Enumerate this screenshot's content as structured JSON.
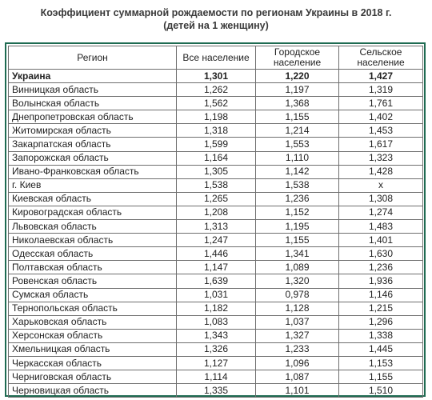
{
  "title": {
    "line1": "Коэффициент суммарной рождаемости по регионам Украины в 2018 г.",
    "line2": "(детей на 1 женщину)"
  },
  "table": {
    "headers": {
      "region": "Регион",
      "total": "Все население",
      "urban_line1": "Городское",
      "urban_line2": "население",
      "rural_line1": "Сельское",
      "rural_line2": "население"
    },
    "rows": [
      {
        "region": "Украина",
        "total": "1,301",
        "urban": "1,220",
        "rural": "1,427",
        "bold": true
      },
      {
        "region": "Винницкая область",
        "total": "1,262",
        "urban": "1,197",
        "rural": "1,319"
      },
      {
        "region": "Волынская область",
        "total": "1,562",
        "urban": "1,368",
        "rural": "1,761"
      },
      {
        "region": "Днепропетровская область",
        "total": "1,198",
        "urban": "1,155",
        "rural": "1,402"
      },
      {
        "region": "Житомирская область",
        "total": "1,318",
        "urban": "1,214",
        "rural": "1,453"
      },
      {
        "region": "Закарпатская область",
        "total": "1,599",
        "urban": "1,553",
        "rural": "1,617"
      },
      {
        "region": "Запорожская область",
        "total": "1,164",
        "urban": "1,110",
        "rural": "1,323"
      },
      {
        "region": "Ивано-Франковская область",
        "total": "1,305",
        "urban": "1,142",
        "rural": "1,428"
      },
      {
        "region": "г. Киев",
        "total": "1,538",
        "urban": "1,538",
        "rural": "x"
      },
      {
        "region": "Киевская область",
        "total": "1,265",
        "urban": "1,236",
        "rural": "1,308"
      },
      {
        "region": "Кировоградская область",
        "total": "1,208",
        "urban": "1,152",
        "rural": "1,274"
      },
      {
        "region": "Львовская область",
        "total": "1,313",
        "urban": "1,195",
        "rural": "1,483"
      },
      {
        "region": "Николаевская область",
        "total": "1,247",
        "urban": "1,155",
        "rural": "1,401"
      },
      {
        "region": "Одесская область",
        "total": "1,446",
        "urban": "1,341",
        "rural": "1,630"
      },
      {
        "region": "Полтавская область",
        "total": "1,147",
        "urban": "1,089",
        "rural": "1,236"
      },
      {
        "region": "Ровенская область",
        "total": "1,639",
        "urban": "1,320",
        "rural": "1,936"
      },
      {
        "region": "Сумская область",
        "total": "1,031",
        "urban": "0,978",
        "rural": "1,146"
      },
      {
        "region": "Тернопольская область",
        "total": "1,182",
        "urban": "1,128",
        "rural": "1,215"
      },
      {
        "region": "Харьковская область",
        "total": "1,083",
        "urban": "1,037",
        "rural": "1,296"
      },
      {
        "region": "Херсонская область",
        "total": "1,343",
        "urban": "1,327",
        "rural": "1,338"
      },
      {
        "region": "Хмельницкая область",
        "total": "1,326",
        "urban": "1,233",
        "rural": "1,445"
      },
      {
        "region": "Черкасская область",
        "total": "1,127",
        "urban": "1,096",
        "rural": "1,153"
      },
      {
        "region": "Черниговская область",
        "total": "1,114",
        "urban": "1,087",
        "rural": "1,155"
      },
      {
        "region": "Черновицкая область",
        "total": "1,335",
        "urban": "1,101",
        "rural": "1,510"
      }
    ]
  }
}
